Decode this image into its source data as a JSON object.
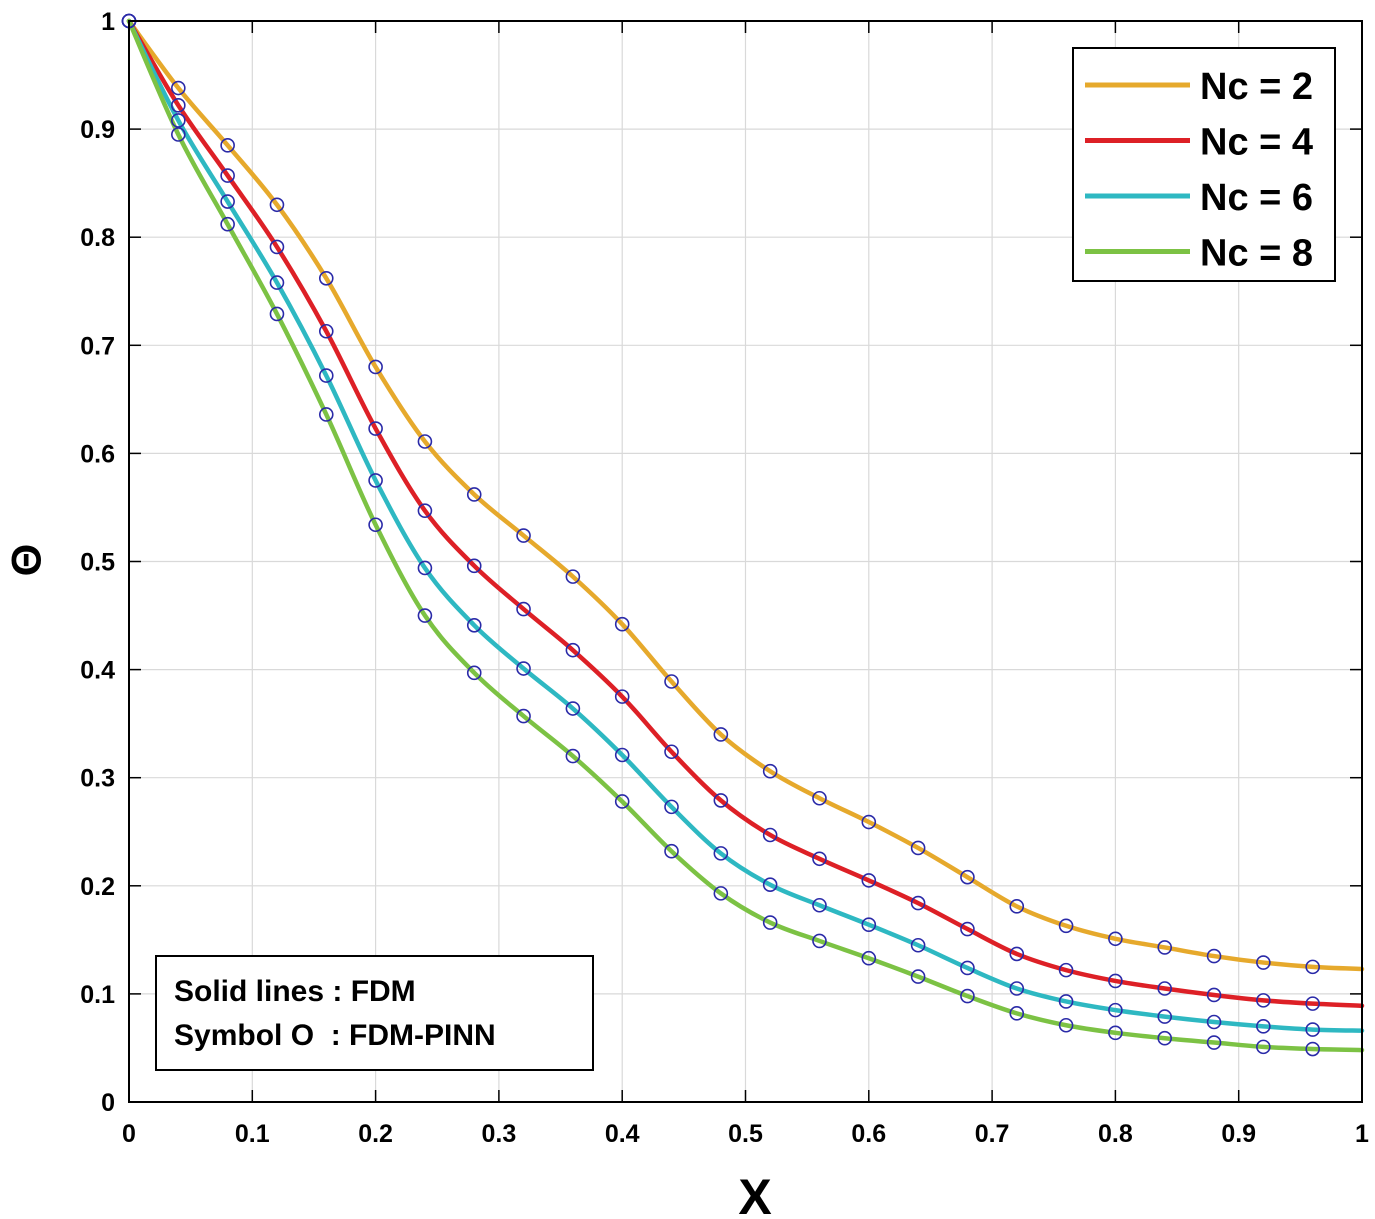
{
  "chart_data": {
    "type": "line",
    "title": "",
    "xlabel": "X",
    "ylabel": "Θ",
    "xlim": [
      0,
      1
    ],
    "ylim": [
      0,
      1
    ],
    "xticks": [
      0,
      0.1,
      0.2,
      0.3,
      0.4,
      0.5,
      0.6,
      0.7,
      0.8,
      0.9,
      1
    ],
    "yticks": [
      0,
      0.1,
      0.2,
      0.3,
      0.4,
      0.5,
      0.6,
      0.7,
      0.8,
      0.9,
      1
    ],
    "xtick_labels": [
      "0",
      "0.1",
      "0.2",
      "0.3",
      "0.4",
      "0.5",
      "0.6",
      "0.7",
      "0.8",
      "0.9",
      "1"
    ],
    "ytick_labels": [
      "0",
      "0.1",
      "0.2",
      "0.3",
      "0.4",
      "0.5",
      "0.6",
      "0.7",
      "0.8",
      "0.9",
      "1"
    ],
    "grid": true,
    "legend_position": "top-right",
    "marker_color": "#2a2aa8",
    "marker_x": [
      0,
      0.04,
      0.08,
      0.12,
      0.16,
      0.2,
      0.24,
      0.28,
      0.32,
      0.36,
      0.4,
      0.44,
      0.48,
      0.52,
      0.56,
      0.6,
      0.64,
      0.68,
      0.72,
      0.76,
      0.8,
      0.84,
      0.88,
      0.92,
      0.96
    ],
    "line_x": [
      0,
      0.04,
      0.08,
      0.12,
      0.16,
      0.2,
      0.24,
      0.28,
      0.32,
      0.36,
      0.4,
      0.44,
      0.48,
      0.52,
      0.56,
      0.6,
      0.64,
      0.68,
      0.72,
      0.76,
      0.8,
      0.84,
      0.88,
      0.92,
      0.96,
      1.0
    ],
    "series": [
      {
        "name": "Nc = 2",
        "color": "#e6a92c",
        "values": [
          1.0,
          0.938,
          0.885,
          0.83,
          0.762,
          0.68,
          0.611,
          0.562,
          0.524,
          0.486,
          0.442,
          0.389,
          0.34,
          0.306,
          0.281,
          0.259,
          0.235,
          0.208,
          0.181,
          0.163,
          0.151,
          0.143,
          0.135,
          0.129,
          0.125,
          0.123
        ]
      },
      {
        "name": "Nc = 4",
        "color": "#dd2026",
        "values": [
          1.0,
          0.922,
          0.857,
          0.791,
          0.713,
          0.623,
          0.547,
          0.496,
          0.456,
          0.418,
          0.375,
          0.324,
          0.279,
          0.247,
          0.225,
          0.205,
          0.184,
          0.16,
          0.137,
          0.122,
          0.112,
          0.105,
          0.099,
          0.094,
          0.091,
          0.089
        ]
      },
      {
        "name": "Nc = 6",
        "color": "#2eb8c2",
        "values": [
          1.0,
          0.908,
          0.833,
          0.758,
          0.672,
          0.575,
          0.494,
          0.441,
          0.401,
          0.364,
          0.321,
          0.273,
          0.23,
          0.201,
          0.182,
          0.164,
          0.145,
          0.124,
          0.105,
          0.093,
          0.085,
          0.079,
          0.074,
          0.07,
          0.067,
          0.066
        ]
      },
      {
        "name": "Nc = 8",
        "color": "#7cc244",
        "values": [
          1.0,
          0.895,
          0.812,
          0.729,
          0.636,
          0.534,
          0.45,
          0.397,
          0.357,
          0.32,
          0.278,
          0.232,
          0.193,
          0.166,
          0.149,
          0.133,
          0.116,
          0.098,
          0.082,
          0.071,
          0.064,
          0.059,
          0.055,
          0.051,
          0.049,
          0.048
        ]
      }
    ],
    "annotations": [
      "Solid lines : FDM",
      "Symbol O  : FDM-PINN"
    ]
  }
}
